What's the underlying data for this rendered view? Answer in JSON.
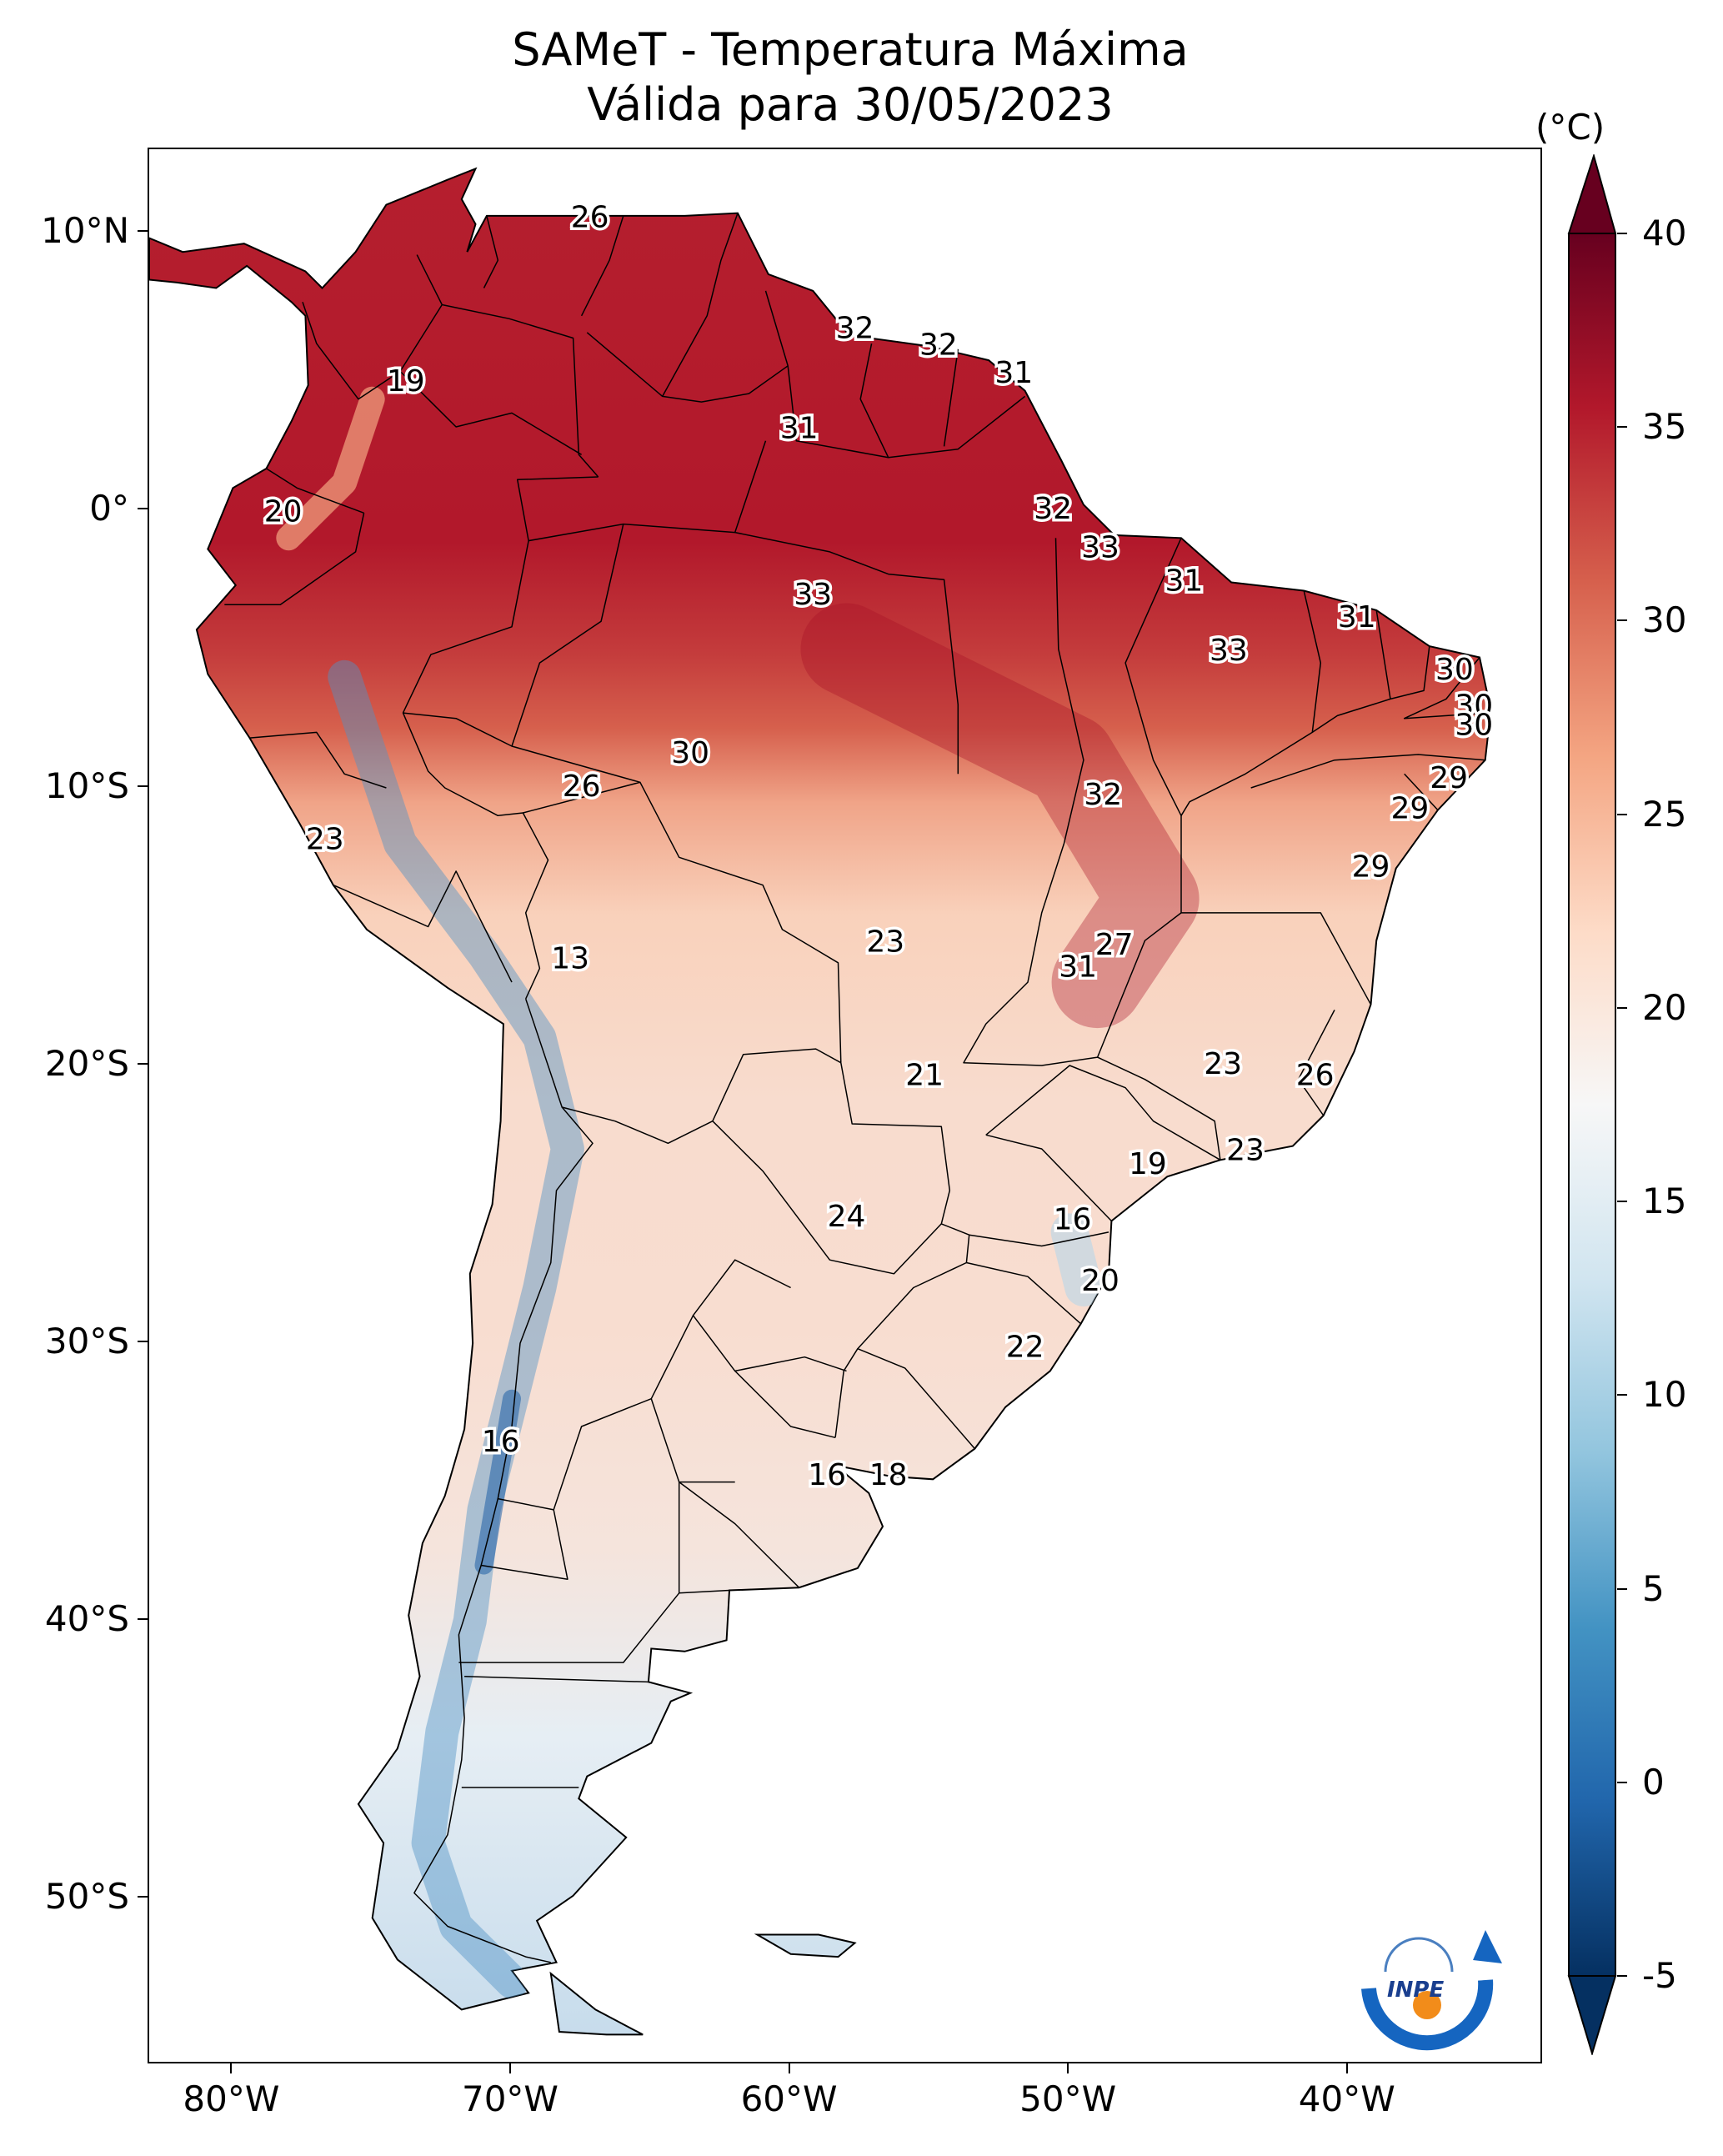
{
  "title_line1": "SAMeT - Temperatura Máxima",
  "title_line2": "Válida para 30/05/2023",
  "lat_ticks": [
    "10°N",
    "0°",
    "10°S",
    "20°S",
    "30°S",
    "40°S",
    "50°S"
  ],
  "lon_ticks": [
    "80°W",
    "70°W",
    "60°W",
    "50°W",
    "40°W"
  ],
  "colorbar": {
    "unit": "(°C)",
    "ticks": [
      "40",
      "35",
      "30",
      "25",
      "20",
      "15",
      "10",
      "5",
      "0",
      "-5"
    ],
    "range": [
      -5,
      40
    ],
    "colormap": "RdBu_r",
    "colors": [
      "#053061",
      "#2166ac",
      "#4393c3",
      "#92c5de",
      "#d1e5f0",
      "#f7f7f7",
      "#fddbc7",
      "#f4a582",
      "#d6604d",
      "#b2182b",
      "#67001f"
    ]
  },
  "values": [
    {
      "text": "26",
      "lon": -67.2,
      "lat": 10.5
    },
    {
      "text": "32",
      "lon": -57.7,
      "lat": 6.5
    },
    {
      "text": "32",
      "lon": -54.7,
      "lat": 5.9
    },
    {
      "text": "31",
      "lon": -52.0,
      "lat": 4.9
    },
    {
      "text": "19",
      "lon": -73.8,
      "lat": 4.6
    },
    {
      "text": "31",
      "lon": -59.7,
      "lat": 2.9
    },
    {
      "text": "32",
      "lon": -50.6,
      "lat": 0.0
    },
    {
      "text": "20",
      "lon": -78.2,
      "lat": -0.1
    },
    {
      "text": "33",
      "lon": -48.9,
      "lat": -1.4
    },
    {
      "text": "31",
      "lon": -45.9,
      "lat": -2.6
    },
    {
      "text": "33",
      "lon": -59.2,
      "lat": -3.1
    },
    {
      "text": "31",
      "lon": -39.7,
      "lat": -3.9
    },
    {
      "text": "33",
      "lon": -44.3,
      "lat": -5.1
    },
    {
      "text": "30",
      "lon": -36.2,
      "lat": -5.8
    },
    {
      "text": "30",
      "lon": -35.5,
      "lat": -7.1
    },
    {
      "text": "30",
      "lon": -35.5,
      "lat": -7.8
    },
    {
      "text": "30",
      "lon": -63.6,
      "lat": -8.8
    },
    {
      "text": "29",
      "lon": -36.4,
      "lat": -9.7
    },
    {
      "text": "26",
      "lon": -67.5,
      "lat": -10.0
    },
    {
      "text": "32",
      "lon": -48.8,
      "lat": -10.3
    },
    {
      "text": "29",
      "lon": -37.8,
      "lat": -10.8
    },
    {
      "text": "23",
      "lon": -76.7,
      "lat": -11.9
    },
    {
      "text": "29",
      "lon": -39.2,
      "lat": -12.9
    },
    {
      "text": "23",
      "lon": -56.6,
      "lat": -15.6
    },
    {
      "text": "27",
      "lon": -48.4,
      "lat": -15.7
    },
    {
      "text": "31",
      "lon": -49.7,
      "lat": -16.5
    },
    {
      "text": "13",
      "lon": -67.9,
      "lat": -16.2
    },
    {
      "text": "23",
      "lon": -44.5,
      "lat": -20.0
    },
    {
      "text": "26",
      "lon": -41.2,
      "lat": -20.4
    },
    {
      "text": "21",
      "lon": -55.2,
      "lat": -20.4
    },
    {
      "text": "23",
      "lon": -43.7,
      "lat": -23.1
    },
    {
      "text": "19",
      "lon": -47.2,
      "lat": -23.6
    },
    {
      "text": "24",
      "lon": -58.0,
      "lat": -25.5
    },
    {
      "text": "16",
      "lon": -49.9,
      "lat": -25.6
    },
    {
      "text": "20",
      "lon": -48.9,
      "lat": -27.8
    },
    {
      "text": "22",
      "lon": -51.6,
      "lat": -30.2
    },
    {
      "text": "16",
      "lon": -70.4,
      "lat": -33.6
    },
    {
      "text": "16",
      "lon": -58.7,
      "lat": -34.8
    },
    {
      "text": "18",
      "lon": -56.5,
      "lat": -34.8
    }
  ],
  "logo_text": "INPE"
}
